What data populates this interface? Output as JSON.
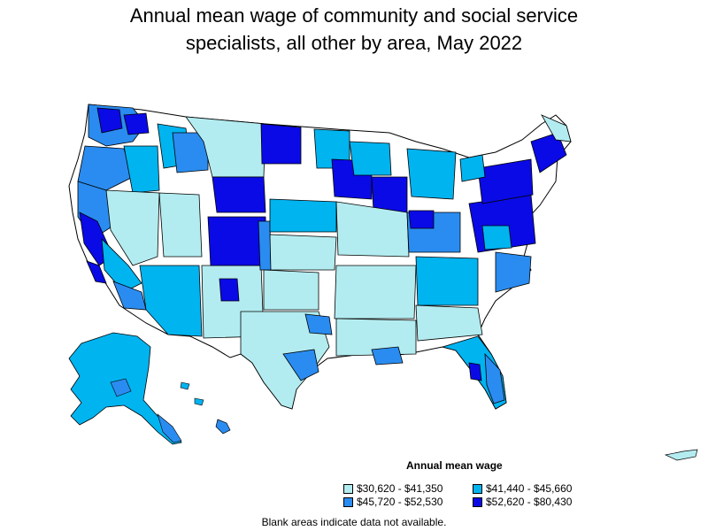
{
  "title": "Annual mean wage of community and social service specialists, all other by area, May 2022",
  "title_lines": [
    "Annual mean wage of community and social service",
    "specialists, all other by area, May 2022"
  ],
  "legend": {
    "title": "Annual mean wage",
    "items": [
      {
        "label": "$30,620 - $41,350",
        "color": "#b3ecf0"
      },
      {
        "label": "$41,440 - $45,660",
        "color": "#00b4f0"
      },
      {
        "label": "$45,720 - $52,530",
        "color": "#2a8cf0"
      },
      {
        "label": "$52,620 - $80,430",
        "color": "#0a0ae6"
      }
    ]
  },
  "note": "Blank areas indicate data not available.",
  "colors": {
    "tier1": "#b3ecf0",
    "tier2": "#00b4f0",
    "tier3": "#2a8cf0",
    "tier4": "#0a0ae6",
    "blank": "#ffffff",
    "outline": "#000000"
  }
}
